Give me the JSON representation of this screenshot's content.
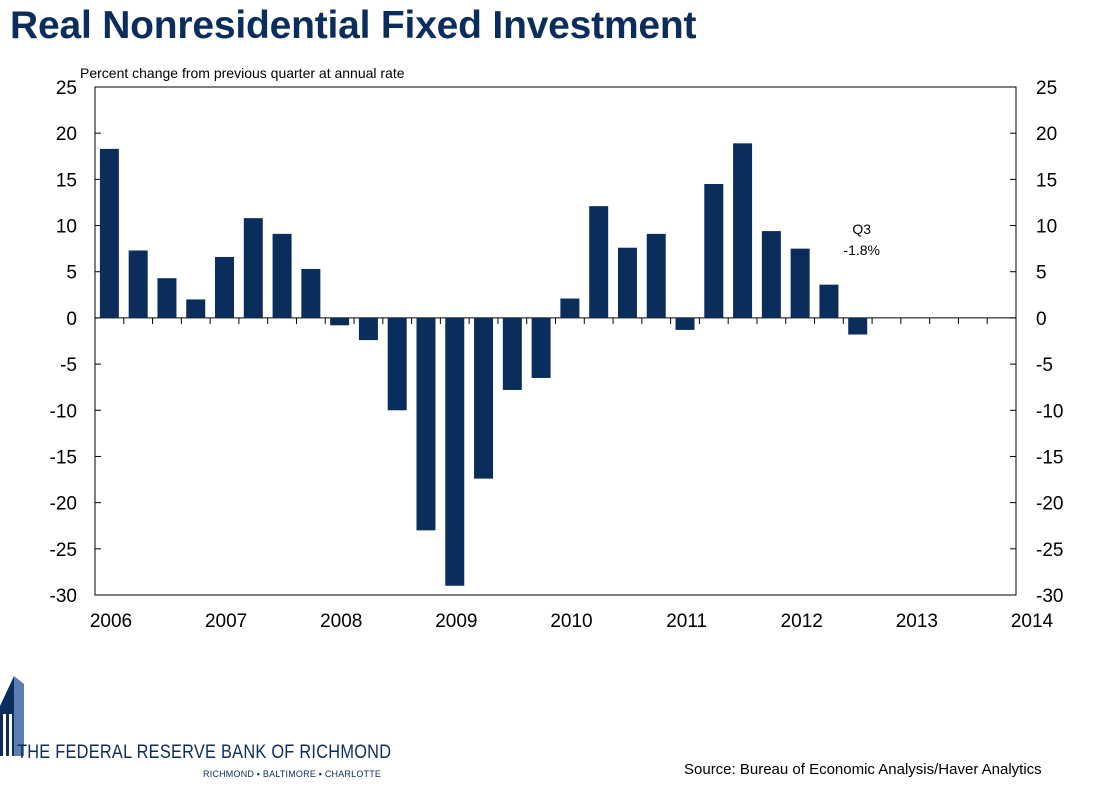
{
  "header": {
    "title": "Real Nonresidential Fixed Investment"
  },
  "chart_data": {
    "type": "bar",
    "title": "Real Nonresidential Fixed Investment",
    "subtitle": "Percent change from previous quarter at annual rate",
    "ylim": [
      -30,
      25
    ],
    "yticks": [
      "25",
      "20",
      "15",
      "10",
      "5",
      "0",
      "-5",
      "-10",
      "-15",
      "-20",
      "-25",
      "-30"
    ],
    "ytick_values": [
      25,
      20,
      15,
      10,
      5,
      0,
      -5,
      -10,
      -15,
      -20,
      -25,
      -30
    ],
    "x_labels": [
      "2006",
      "2007",
      "2008",
      "2009",
      "2010",
      "2011",
      "2012",
      "2013",
      "2014"
    ],
    "x_start_year": 2006,
    "quarters_shown": 32,
    "series": [
      {
        "name": "Real Nonresidential Fixed Investment",
        "color": "#0b2d5b",
        "categories": [
          "2006Q1",
          "2006Q2",
          "2006Q3",
          "2006Q4",
          "2007Q1",
          "2007Q2",
          "2007Q3",
          "2007Q4",
          "2008Q1",
          "2008Q2",
          "2008Q3",
          "2008Q4",
          "2009Q1",
          "2009Q2",
          "2009Q3",
          "2009Q4",
          "2010Q1",
          "2010Q2",
          "2010Q3",
          "2010Q4",
          "2011Q1",
          "2011Q2",
          "2011Q3",
          "2011Q4",
          "2012Q1",
          "2012Q2",
          "2012Q3"
        ],
        "values": [
          18.3,
          7.3,
          4.3,
          2.0,
          6.6,
          10.8,
          9.1,
          5.3,
          -0.8,
          -2.4,
          -10.0,
          -23.0,
          -29.0,
          -17.4,
          -7.8,
          -6.5,
          2.1,
          12.1,
          7.6,
          9.1,
          -1.3,
          14.5,
          18.9,
          9.4,
          7.5,
          3.6,
          -1.8
        ]
      }
    ],
    "annotation": {
      "label": "Q3",
      "value_text": "-1.8%",
      "index": 26
    }
  },
  "footer": {
    "bank_name": "THE FEDERAL RESERVE BANK OF RICHMOND",
    "cities": "RICHMOND ▪ BALTIMORE ▪ CHARLOTTE",
    "source": "Source: Bureau of Economic Analysis/Haver Analytics"
  }
}
